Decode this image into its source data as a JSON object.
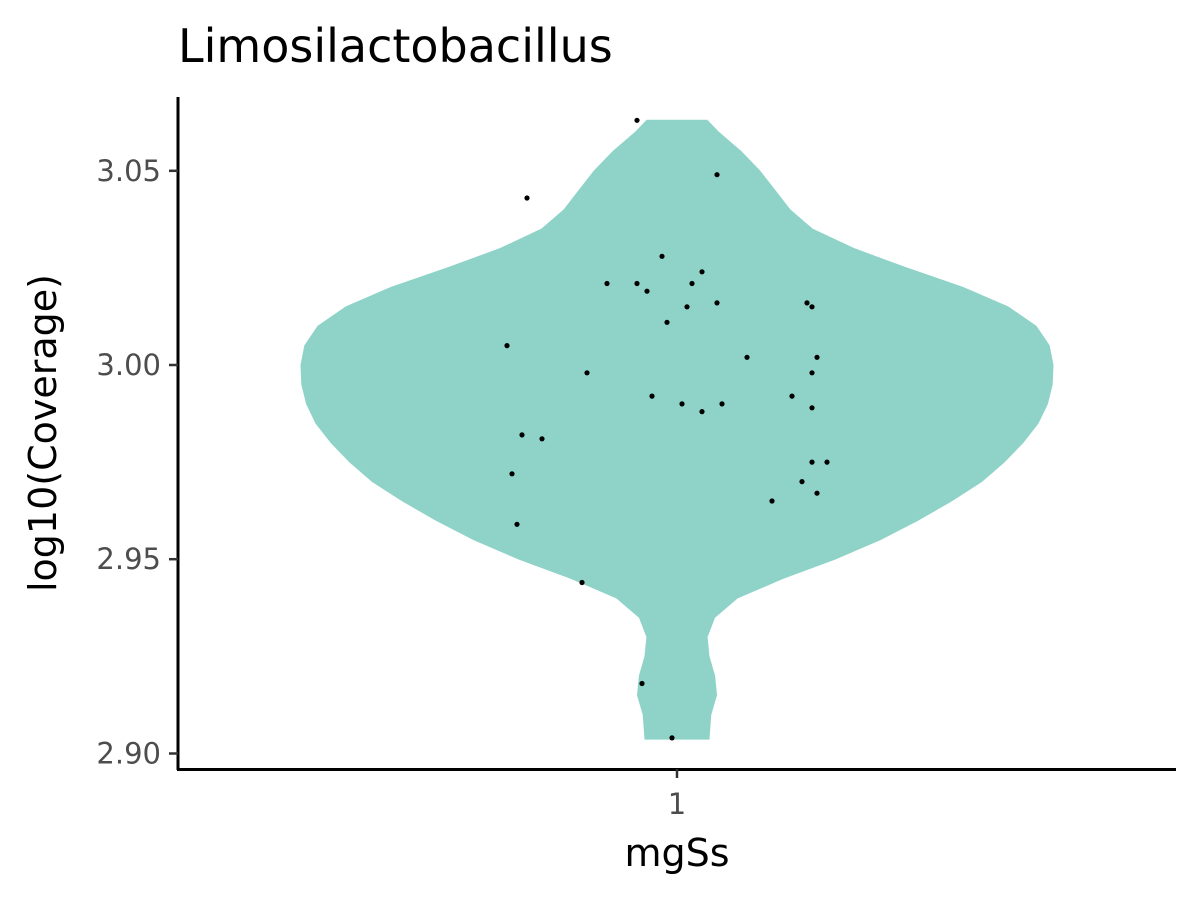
{
  "chart_data": {
    "type": "violin",
    "title": "Limosilactobacillus",
    "xlabel": "mgSs",
    "ylabel": "log10(Coverage)",
    "categories": [
      "1"
    ],
    "ylim": [
      2.896,
      3.069
    ],
    "yticks": [
      2.9,
      2.95,
      3.0,
      3.05
    ],
    "ytick_labels": [
      "2.90",
      "2.95",
      "3.00",
      "3.05"
    ],
    "fill_color": "#8fd3c8",
    "point_color": "#000000",
    "grid": false,
    "legend": "none",
    "violin_density": [
      [
        2.9037,
        0.085
      ],
      [
        2.91,
        0.09
      ],
      [
        2.915,
        0.105
      ],
      [
        2.92,
        0.1
      ],
      [
        2.925,
        0.085
      ],
      [
        2.93,
        0.08
      ],
      [
        2.935,
        0.1
      ],
      [
        2.94,
        0.16
      ],
      [
        2.945,
        0.28
      ],
      [
        2.95,
        0.42
      ],
      [
        2.955,
        0.54
      ],
      [
        2.96,
        0.64
      ],
      [
        2.965,
        0.73
      ],
      [
        2.97,
        0.81
      ],
      [
        2.975,
        0.87
      ],
      [
        2.98,
        0.92
      ],
      [
        2.985,
        0.96
      ],
      [
        2.99,
        0.985
      ],
      [
        2.995,
        0.998
      ],
      [
        3.0,
        1.0
      ],
      [
        3.005,
        0.99
      ],
      [
        3.01,
        0.955
      ],
      [
        3.015,
        0.88
      ],
      [
        3.02,
        0.76
      ],
      [
        3.025,
        0.61
      ],
      [
        3.03,
        0.47
      ],
      [
        3.035,
        0.36
      ],
      [
        3.04,
        0.3
      ],
      [
        3.045,
        0.26
      ],
      [
        3.05,
        0.22
      ],
      [
        3.055,
        0.17
      ],
      [
        3.06,
        0.11
      ],
      [
        3.063,
        0.08
      ]
    ],
    "points": [
      {
        "x": 0.92,
        "y": 3.063
      },
      {
        "x": 1.08,
        "y": 3.049
      },
      {
        "x": 0.7,
        "y": 3.043
      },
      {
        "x": 0.97,
        "y": 3.028
      },
      {
        "x": 1.05,
        "y": 3.024
      },
      {
        "x": 0.86,
        "y": 3.021
      },
      {
        "x": 0.92,
        "y": 3.021
      },
      {
        "x": 1.03,
        "y": 3.021
      },
      {
        "x": 0.94,
        "y": 3.019
      },
      {
        "x": 1.08,
        "y": 3.016
      },
      {
        "x": 1.02,
        "y": 3.015
      },
      {
        "x": 1.26,
        "y": 3.016
      },
      {
        "x": 1.27,
        "y": 3.015
      },
      {
        "x": 0.98,
        "y": 3.011
      },
      {
        "x": 0.66,
        "y": 3.005
      },
      {
        "x": 1.14,
        "y": 3.002
      },
      {
        "x": 1.28,
        "y": 3.002
      },
      {
        "x": 0.82,
        "y": 2.998
      },
      {
        "x": 1.27,
        "y": 2.998
      },
      {
        "x": 0.95,
        "y": 2.992
      },
      {
        "x": 1.23,
        "y": 2.992
      },
      {
        "x": 1.01,
        "y": 2.99
      },
      {
        "x": 1.09,
        "y": 2.99
      },
      {
        "x": 1.27,
        "y": 2.989
      },
      {
        "x": 1.05,
        "y": 2.988
      },
      {
        "x": 0.69,
        "y": 2.982
      },
      {
        "x": 0.73,
        "y": 2.981
      },
      {
        "x": 1.27,
        "y": 2.975
      },
      {
        "x": 1.3,
        "y": 2.975
      },
      {
        "x": 0.67,
        "y": 2.972
      },
      {
        "x": 1.25,
        "y": 2.97
      },
      {
        "x": 1.28,
        "y": 2.967
      },
      {
        "x": 1.19,
        "y": 2.965
      },
      {
        "x": 0.68,
        "y": 2.959
      },
      {
        "x": 0.81,
        "y": 2.944
      },
      {
        "x": 0.93,
        "y": 2.918
      },
      {
        "x": 0.99,
        "y": 2.904
      }
    ]
  }
}
